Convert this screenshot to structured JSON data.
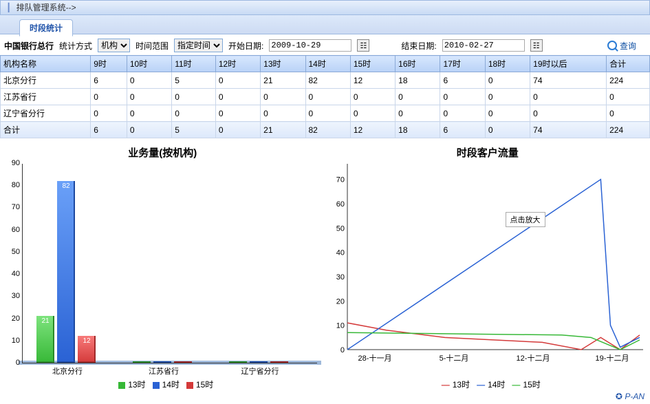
{
  "breadcrumb": {
    "text": "排队管理系统-->"
  },
  "tab": {
    "label": "时段统计"
  },
  "filters": {
    "org_label": "中国银行总行",
    "stat_method_label": "统计方式",
    "stat_method_value": "机构",
    "time_range_label": "时间范围",
    "time_range_value": "指定时间",
    "start_date_label": "开始日期:",
    "start_date_value": "2009-10-29",
    "end_date_label": "结束日期:",
    "end_date_value": "2010-02-27",
    "query_label": "查询"
  },
  "table": {
    "columns": [
      "机构名称",
      "9时",
      "10时",
      "11时",
      "12时",
      "13时",
      "14时",
      "15时",
      "16时",
      "17时",
      "18时",
      "19时以后",
      "合计"
    ],
    "rows": [
      [
        "北京分行",
        "6",
        "0",
        "5",
        "0",
        "21",
        "82",
        "12",
        "18",
        "6",
        "0",
        "74",
        "224"
      ],
      [
        "江苏省行",
        "0",
        "0",
        "0",
        "0",
        "0",
        "0",
        "0",
        "0",
        "0",
        "0",
        "0",
        "0"
      ],
      [
        "辽宁省分行",
        "0",
        "0",
        "0",
        "0",
        "0",
        "0",
        "0",
        "0",
        "0",
        "0",
        "0",
        "0"
      ]
    ],
    "totals": [
      "合计",
      "6",
      "0",
      "5",
      "0",
      "21",
      "82",
      "12",
      "18",
      "6",
      "0",
      "74",
      "224"
    ]
  },
  "bar_chart": {
    "title": "业务量(按机构)",
    "categories": [
      "北京分行",
      "江苏省行",
      "辽宁省分行"
    ],
    "series": [
      {
        "name": "13时",
        "color": "#37b837",
        "values": [
          21,
          0,
          0
        ]
      },
      {
        "name": "14时",
        "color": "#2a62d4",
        "values": [
          82,
          0,
          0
        ]
      },
      {
        "name": "15时",
        "color": "#d43a3a",
        "values": [
          12,
          0,
          0
        ]
      }
    ],
    "y_ticks": [
      0,
      10,
      20,
      30,
      40,
      50,
      60,
      70,
      80,
      90
    ],
    "ymax": 90,
    "bar_labels": {
      "0_0": "21",
      "0_1": "82",
      "0_2": "12"
    }
  },
  "line_chart": {
    "title": "时段客户流量",
    "tooltip": "点击放大",
    "x_labels": [
      "28-十一月",
      "5-十二月",
      "12-十二月",
      "19-十二月"
    ],
    "y_ticks": [
      0,
      10,
      20,
      30,
      40,
      50,
      60,
      70
    ],
    "ymax": 75,
    "x_domain": [
      0,
      30
    ],
    "series": [
      {
        "name": "13时",
        "color": "#d43a3a",
        "points": [
          [
            0,
            11
          ],
          [
            4,
            8
          ],
          [
            10,
            5
          ],
          [
            20,
            3
          ],
          [
            24,
            0
          ],
          [
            26,
            5
          ],
          [
            28,
            0
          ],
          [
            30,
            6
          ]
        ]
      },
      {
        "name": "14时",
        "color": "#2a62d4",
        "points": [
          [
            0,
            0
          ],
          [
            26,
            70
          ],
          [
            27,
            10
          ],
          [
            28,
            1
          ],
          [
            30,
            5
          ]
        ]
      },
      {
        "name": "15时",
        "color": "#37b837",
        "points": [
          [
            0,
            7
          ],
          [
            22,
            6
          ],
          [
            25,
            5
          ],
          [
            28,
            0
          ],
          [
            30,
            4
          ]
        ]
      }
    ]
  },
  "footer": {
    "brand": "P-AN"
  },
  "colors": {
    "green": "#37b837",
    "blue": "#2a62d4",
    "red": "#d43a3a"
  }
}
